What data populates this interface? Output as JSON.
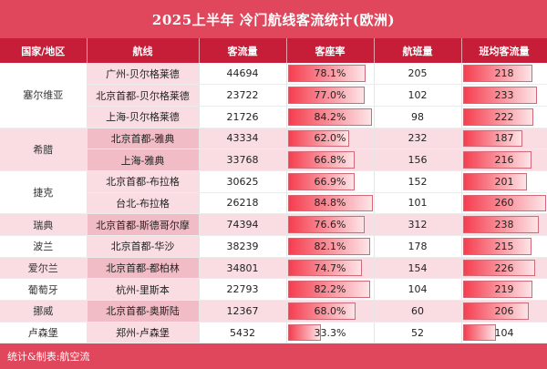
{
  "chart_data": {
    "type": "table",
    "title": "2025上半年 冷门航线客流统计(欧洲)",
    "columns": [
      "国家/地区",
      "航线",
      "客流量",
      "客座率",
      "航班量",
      "班均客流量"
    ],
    "groups": [
      {
        "country": "塞尔维亚",
        "rows": [
          {
            "route": "广州-贝尔格莱德",
            "pax": 44694,
            "load": "78.1%",
            "flights": 205,
            "avg": 218
          },
          {
            "route": "北京首都-贝尔格莱德",
            "pax": 23722,
            "load": "77.0%",
            "flights": 102,
            "avg": 233
          },
          {
            "route": "上海-贝尔格莱德",
            "pax": 21726,
            "load": "84.2%",
            "flights": 98,
            "avg": 222
          }
        ]
      },
      {
        "country": "希腊",
        "rows": [
          {
            "route": "北京首都-雅典",
            "pax": 43334,
            "load": "62.0%",
            "flights": 232,
            "avg": 187
          },
          {
            "route": "上海-雅典",
            "pax": 33768,
            "load": "66.8%",
            "flights": 156,
            "avg": 216
          }
        ]
      },
      {
        "country": "捷克",
        "rows": [
          {
            "route": "北京首都-布拉格",
            "pax": 30625,
            "load": "66.9%",
            "flights": 152,
            "avg": 201
          },
          {
            "route": "台北-布拉格",
            "pax": 26218,
            "load": "84.8%",
            "flights": 101,
            "avg": 260
          }
        ]
      },
      {
        "country": "瑞典",
        "rows": [
          {
            "route": "北京首都-斯德哥尔摩",
            "pax": 74394,
            "load": "76.6%",
            "flights": 312,
            "avg": 238
          }
        ]
      },
      {
        "country": "波兰",
        "rows": [
          {
            "route": "北京首都-华沙",
            "pax": 38239,
            "load": "82.1%",
            "flights": 178,
            "avg": 215
          }
        ]
      },
      {
        "country": "爱尔兰",
        "rows": [
          {
            "route": "北京首都-都柏林",
            "pax": 34801,
            "load": "74.7%",
            "flights": 154,
            "avg": 226
          }
        ]
      },
      {
        "country": "葡萄牙",
        "rows": [
          {
            "route": "杭州-里斯本",
            "pax": 22793,
            "load": "82.2%",
            "flights": 104,
            "avg": 219
          }
        ]
      },
      {
        "country": "挪威",
        "rows": [
          {
            "route": "北京首都-奥斯陆",
            "pax": 12367,
            "load": "68.0%",
            "flights": 60,
            "avg": 206
          }
        ]
      },
      {
        "country": "卢森堡",
        "rows": [
          {
            "route": "郑州-卢森堡",
            "pax": 5432,
            "load": "33.3%",
            "flights": 52,
            "avg": 104
          }
        ]
      }
    ]
  },
  "footer": "统计&制表:航空流",
  "colors": {
    "title_bg": "#e0475c",
    "header_bg": "#c61d38",
    "band": "#f9dde2",
    "bar": "#f53e4f"
  }
}
